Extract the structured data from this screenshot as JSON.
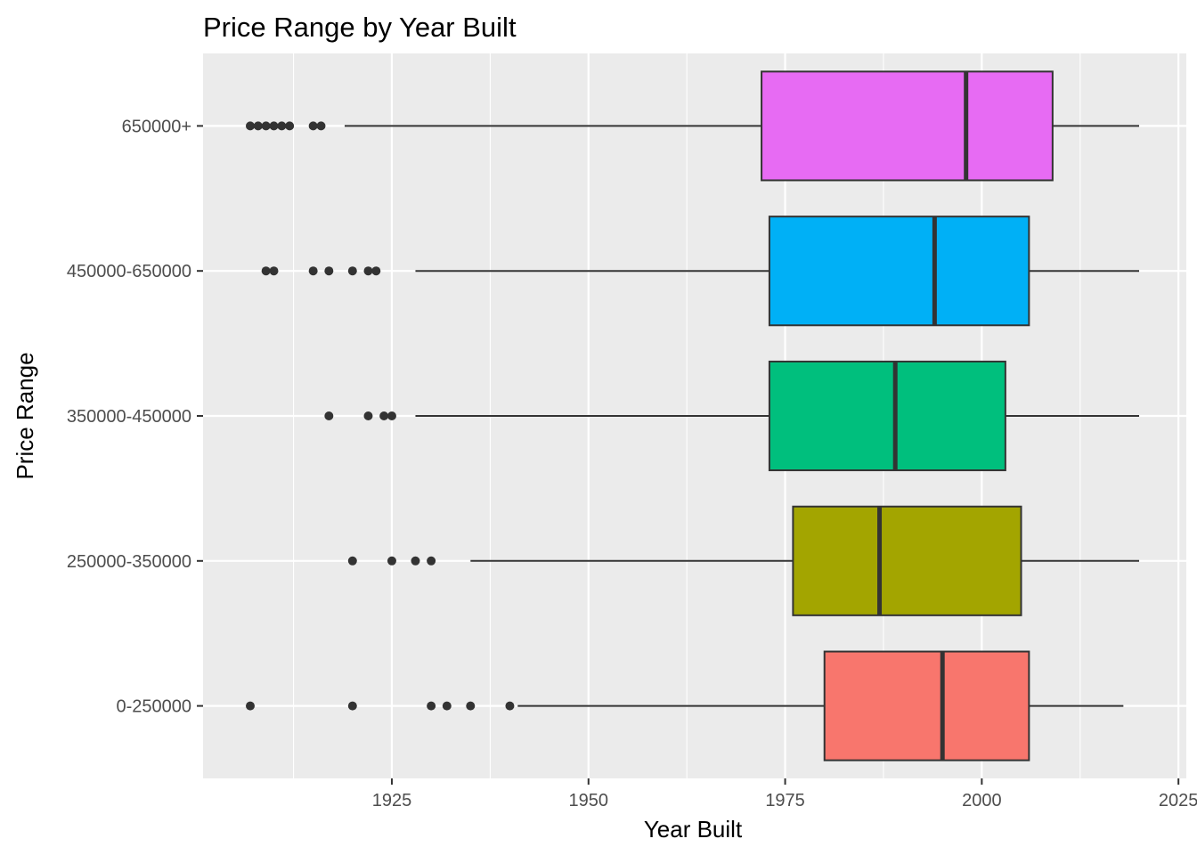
{
  "chart_data": {
    "type": "boxplot",
    "orientation": "horizontal",
    "title": "Price Range by Year Built",
    "xlabel": "Year Built",
    "ylabel": "Price Range",
    "xlim": [
      1901,
      2026
    ],
    "x_ticks": [
      1925,
      1950,
      1975,
      2000,
      2025
    ],
    "x_tick_labels": [
      "1925",
      "1950",
      "1975",
      "2000",
      "2025"
    ],
    "grid": true,
    "legend": "none",
    "categories": [
      "0-250000",
      "250000-350000",
      "350000-450000",
      "450000-650000",
      "650000+"
    ],
    "series": [
      {
        "category": "0-250000",
        "color": "#F8766D",
        "whisker_low": 1941,
        "q1": 1980,
        "median": 1995,
        "q3": 2006,
        "whisker_high": 2018,
        "outliers": [
          1907,
          1920,
          1930,
          1932,
          1935,
          1940
        ]
      },
      {
        "category": "250000-350000",
        "color": "#A3A500",
        "whisker_low": 1935,
        "q1": 1976,
        "median": 1987,
        "q3": 2005,
        "whisker_high": 2020,
        "outliers": [
          1920,
          1925,
          1928,
          1930
        ]
      },
      {
        "category": "350000-450000",
        "color": "#00BF7D",
        "whisker_low": 1928,
        "q1": 1973,
        "median": 1989,
        "q3": 2003,
        "whisker_high": 2020,
        "outliers": [
          1917,
          1922,
          1924,
          1925
        ]
      },
      {
        "category": "450000-650000",
        "color": "#00B0F6",
        "whisker_low": 1928,
        "q1": 1973,
        "median": 1994,
        "q3": 2006,
        "whisker_high": 2020,
        "outliers": [
          1909,
          1910,
          1915,
          1917,
          1920,
          1922,
          1923
        ]
      },
      {
        "category": "650000+",
        "color": "#E76BF3",
        "whisker_low": 1919,
        "q1": 1972,
        "median": 1998,
        "q3": 2009,
        "whisker_high": 2020,
        "outliers": [
          1907,
          1908,
          1909,
          1910,
          1911,
          1912,
          1915,
          1916
        ]
      }
    ]
  }
}
